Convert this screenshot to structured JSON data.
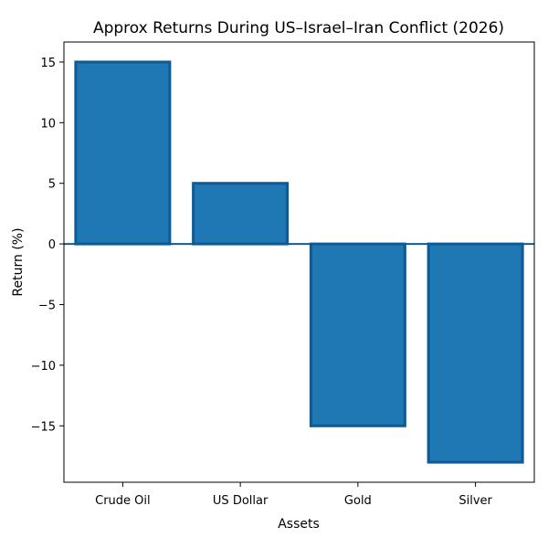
{
  "chart_data": {
    "type": "bar",
    "title": "Approx Returns During US–Israel–Iran Conflict (2026)",
    "xlabel": "Assets",
    "ylabel": "Return (%)",
    "categories": [
      "Crude Oil",
      "US Dollar",
      "Gold",
      "Silver"
    ],
    "values": [
      15,
      5,
      -15,
      -18
    ],
    "ylim": [
      -19.65,
      16.65
    ],
    "yticks": [
      15,
      10,
      5,
      0,
      -5,
      -10,
      -15
    ],
    "ytick_labels": [
      "15",
      "10",
      "5",
      "0",
      "−5",
      "−10",
      "−15"
    ],
    "zero_line": 0,
    "grid": false,
    "legend": "none",
    "colors": {
      "bar": "#1f77b4",
      "bar_edge": "#0d5a94",
      "zero_line": "#0d5a94",
      "axis": "#000000"
    }
  }
}
